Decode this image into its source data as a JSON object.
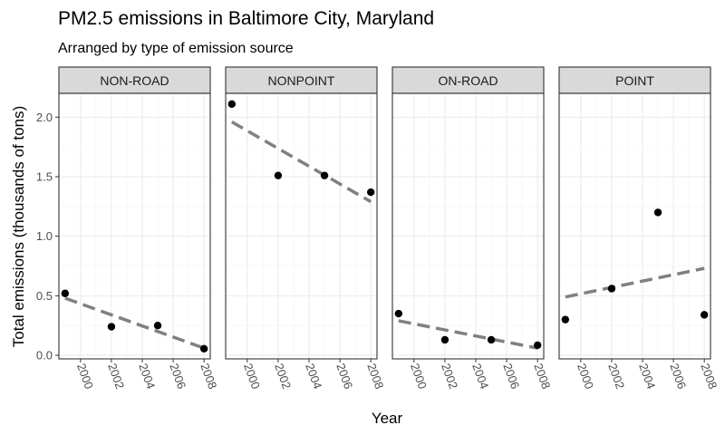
{
  "chart_data": {
    "type": "scatter",
    "title": "PM2.5 emissions in Baltimore City, Maryland",
    "subtitle": "Arranged by type of emission source",
    "xlabel": "Year",
    "ylabel": "Total emissions (thousands of tons)",
    "xlim": [
      1998.6,
      2008.4
    ],
    "ylim": [
      -0.03,
      2.2
    ],
    "x_ticks": [
      2000,
      2002,
      2004,
      2006,
      2008
    ],
    "y_ticks": [
      0.0,
      0.5,
      1.0,
      1.5,
      2.0
    ],
    "y_tick_labels": [
      "0.0",
      "0.5",
      "1.0",
      "1.5",
      "2.0"
    ],
    "grid": true,
    "facets": [
      {
        "name": "NON-ROAD",
        "points": [
          {
            "x": 1999,
            "y": 0.52
          },
          {
            "x": 2002,
            "y": 0.24
          },
          {
            "x": 2005,
            "y": 0.25
          },
          {
            "x": 2008,
            "y": 0.055
          }
        ],
        "trend": {
          "x": [
            1999,
            2008
          ],
          "y": [
            0.48,
            0.06
          ]
        }
      },
      {
        "name": "NONPOINT",
        "points": [
          {
            "x": 1999,
            "y": 2.11
          },
          {
            "x": 2002,
            "y": 1.51
          },
          {
            "x": 2005,
            "y": 1.51
          },
          {
            "x": 2008,
            "y": 1.37
          }
        ],
        "trend": {
          "x": [
            1999,
            2008
          ],
          "y": [
            1.96,
            1.29
          ]
        }
      },
      {
        "name": "ON-ROAD",
        "points": [
          {
            "x": 1999,
            "y": 0.35
          },
          {
            "x": 2002,
            "y": 0.13
          },
          {
            "x": 2005,
            "y": 0.13
          },
          {
            "x": 2008,
            "y": 0.085
          }
        ],
        "trend": {
          "x": [
            1999,
            2008
          ],
          "y": [
            0.29,
            0.06
          ]
        }
      },
      {
        "name": "POINT",
        "points": [
          {
            "x": 1999,
            "y": 0.3
          },
          {
            "x": 2002,
            "y": 0.56
          },
          {
            "x": 2005,
            "y": 1.2
          },
          {
            "x": 2008,
            "y": 0.34
          }
        ],
        "trend": {
          "x": [
            1999,
            2008
          ],
          "y": [
            0.49,
            0.73
          ]
        }
      }
    ],
    "colors": {
      "points": "#000000",
      "trend": "#808080",
      "strip": "#d9d9d9",
      "panel_border": "#333333",
      "grid": "#ebebeb"
    }
  }
}
